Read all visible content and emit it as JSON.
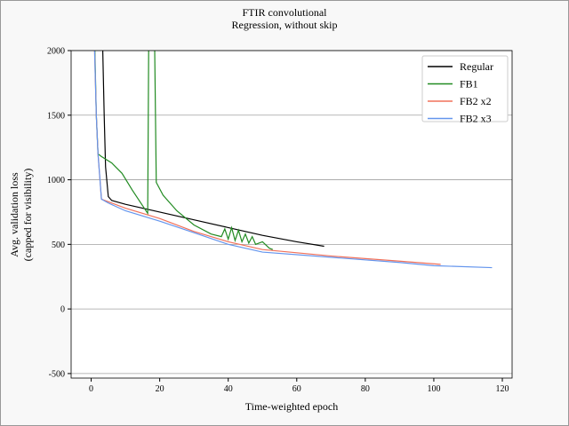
{
  "chart_data": {
    "type": "line",
    "title": "FTIR convolutional",
    "subtitle": "Regression, without skip",
    "x_label": "Time-weighted epoch",
    "y_label": "Avg. validation loss",
    "y_label_note": "(capped for visibility)",
    "xlim": [
      -5.85,
      122.85
    ],
    "ylim": [
      -535,
      2000
    ],
    "xticks": [
      0,
      20,
      40,
      60,
      80,
      100,
      120
    ],
    "yticks": [
      -500,
      0,
      500,
      1000,
      1500,
      2000
    ],
    "grid": "y",
    "legend": "upper right",
    "series": [
      {
        "name": "Regular",
        "color": "#000000",
        "x": [
          3.3,
          3.8,
          4.2,
          5,
          6,
          10,
          20,
          30,
          40,
          50,
          60,
          68
        ],
        "values": [
          2100,
          1500,
          1100,
          870,
          840,
          810,
          750,
          690,
          630,
          570,
          520,
          485
        ]
      },
      {
        "name": "FB1",
        "color": "#228b22",
        "x": [
          1,
          1.5,
          2,
          3,
          6,
          9,
          12,
          15,
          16.5,
          16.8,
          18.5,
          19,
          21,
          25,
          30,
          35,
          38,
          39,
          40,
          41,
          42,
          43,
          44,
          45,
          46,
          47,
          48,
          50,
          52,
          53
        ],
        "values": [
          2100,
          1500,
          1200,
          1180,
          1130,
          1050,
          920,
          800,
          740,
          2100,
          2100,
          980,
          880,
          760,
          650,
          580,
          560,
          620,
          540,
          630,
          530,
          610,
          520,
          580,
          510,
          560,
          500,
          520,
          470,
          460
        ]
      },
      {
        "name": "FB2 x2",
        "color": "#f0705a",
        "x": [
          1,
          1.5,
          2,
          3,
          5,
          10,
          20,
          30,
          40,
          50,
          70,
          90,
          102
        ],
        "values": [
          2000,
          1500,
          1200,
          850,
          830,
          780,
          700,
          600,
          520,
          460,
          410,
          370,
          345
        ]
      },
      {
        "name": "FB2 x3",
        "color": "#6495ed",
        "x": [
          1,
          1.5,
          2,
          3,
          5,
          10,
          20,
          30,
          40,
          50,
          70,
          90,
          100,
          117
        ],
        "values": [
          2000,
          1500,
          1200,
          850,
          820,
          760,
          680,
          590,
          500,
          440,
          400,
          360,
          335,
          320
        ]
      }
    ]
  }
}
